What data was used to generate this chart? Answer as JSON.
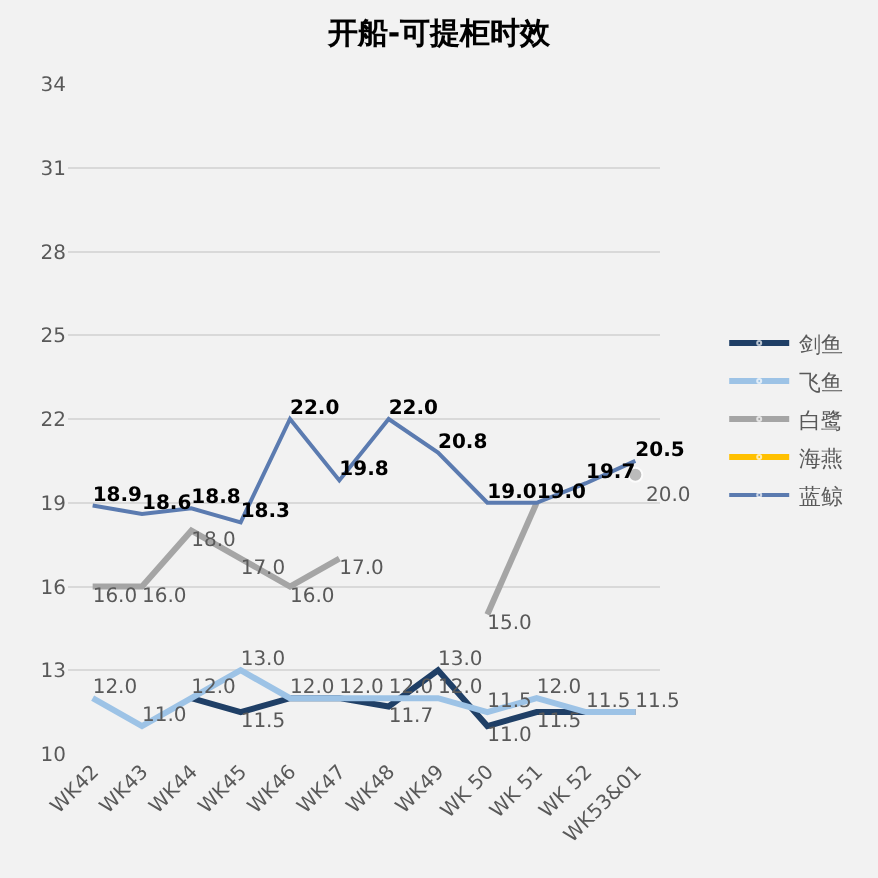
{
  "chart_data": {
    "type": "line",
    "title": "开船-可提柜时效",
    "categories": [
      "WK42",
      "WK43",
      "WK44",
      "WK45",
      "WK46",
      "WK47",
      "WK48",
      "WK49",
      "WK 50",
      "WK 51",
      "WK 52",
      "WK53&01"
    ],
    "series": [
      {
        "name": "剑鱼",
        "color": "#1f3f66",
        "values": [
          null,
          null,
          12.0,
          11.5,
          12.0,
          12.0,
          11.7,
          13.0,
          11.0,
          11.5,
          11.5,
          11.5
        ],
        "value_labels": [
          null,
          null,
          null,
          "11.5",
          null,
          null,
          "11.7",
          "13.0",
          "11.0",
          "11.5",
          null,
          null
        ]
      },
      {
        "name": "飞鱼",
        "color": "#9dc3e6",
        "values": [
          12.0,
          11.0,
          12.0,
          13.0,
          12.0,
          12.0,
          12.0,
          12.0,
          11.5,
          12.0,
          11.5,
          11.5
        ],
        "value_labels": [
          "12.0",
          "11.0",
          "12.0",
          "13.0",
          "12.0",
          "12.0",
          "12.0",
          "12.0",
          "11.5",
          "12.0",
          "11.5",
          "11.5"
        ]
      },
      {
        "name": "白鹭",
        "color": "#a5a5a5",
        "values": [
          16.0,
          16.0,
          18.0,
          17.0,
          16.0,
          17.0,
          null,
          null,
          15.0,
          19.0,
          null,
          20.0
        ],
        "value_labels": [
          "16.0",
          "16.0",
          "18.0",
          "17.0",
          "16.0",
          "17.0",
          null,
          null,
          "15.0",
          null,
          null,
          "20.0"
        ]
      },
      {
        "name": "海燕",
        "color": "#ffc000",
        "values": [
          null,
          null,
          null,
          null,
          null,
          null,
          null,
          null,
          null,
          null,
          null,
          null
        ]
      },
      {
        "name": "蓝鲸",
        "color": "#5b7bb0",
        "values": [
          18.9,
          18.6,
          18.8,
          18.3,
          22.0,
          19.8,
          22.0,
          20.8,
          19.0,
          19.0,
          19.7,
          20.5
        ],
        "value_labels": [
          "18.9",
          "18.6",
          "18.8",
          "18.3",
          "22.0",
          "19.8",
          "22.0",
          "20.8",
          "19.0",
          "19.0",
          "19.7",
          "20.5"
        ]
      }
    ],
    "ylim": [
      10,
      34
    ],
    "yticks": [
      10,
      13,
      16,
      19,
      22,
      25,
      28,
      31,
      34
    ],
    "grid": "y",
    "legend": "right",
    "line_style": "solid"
  }
}
